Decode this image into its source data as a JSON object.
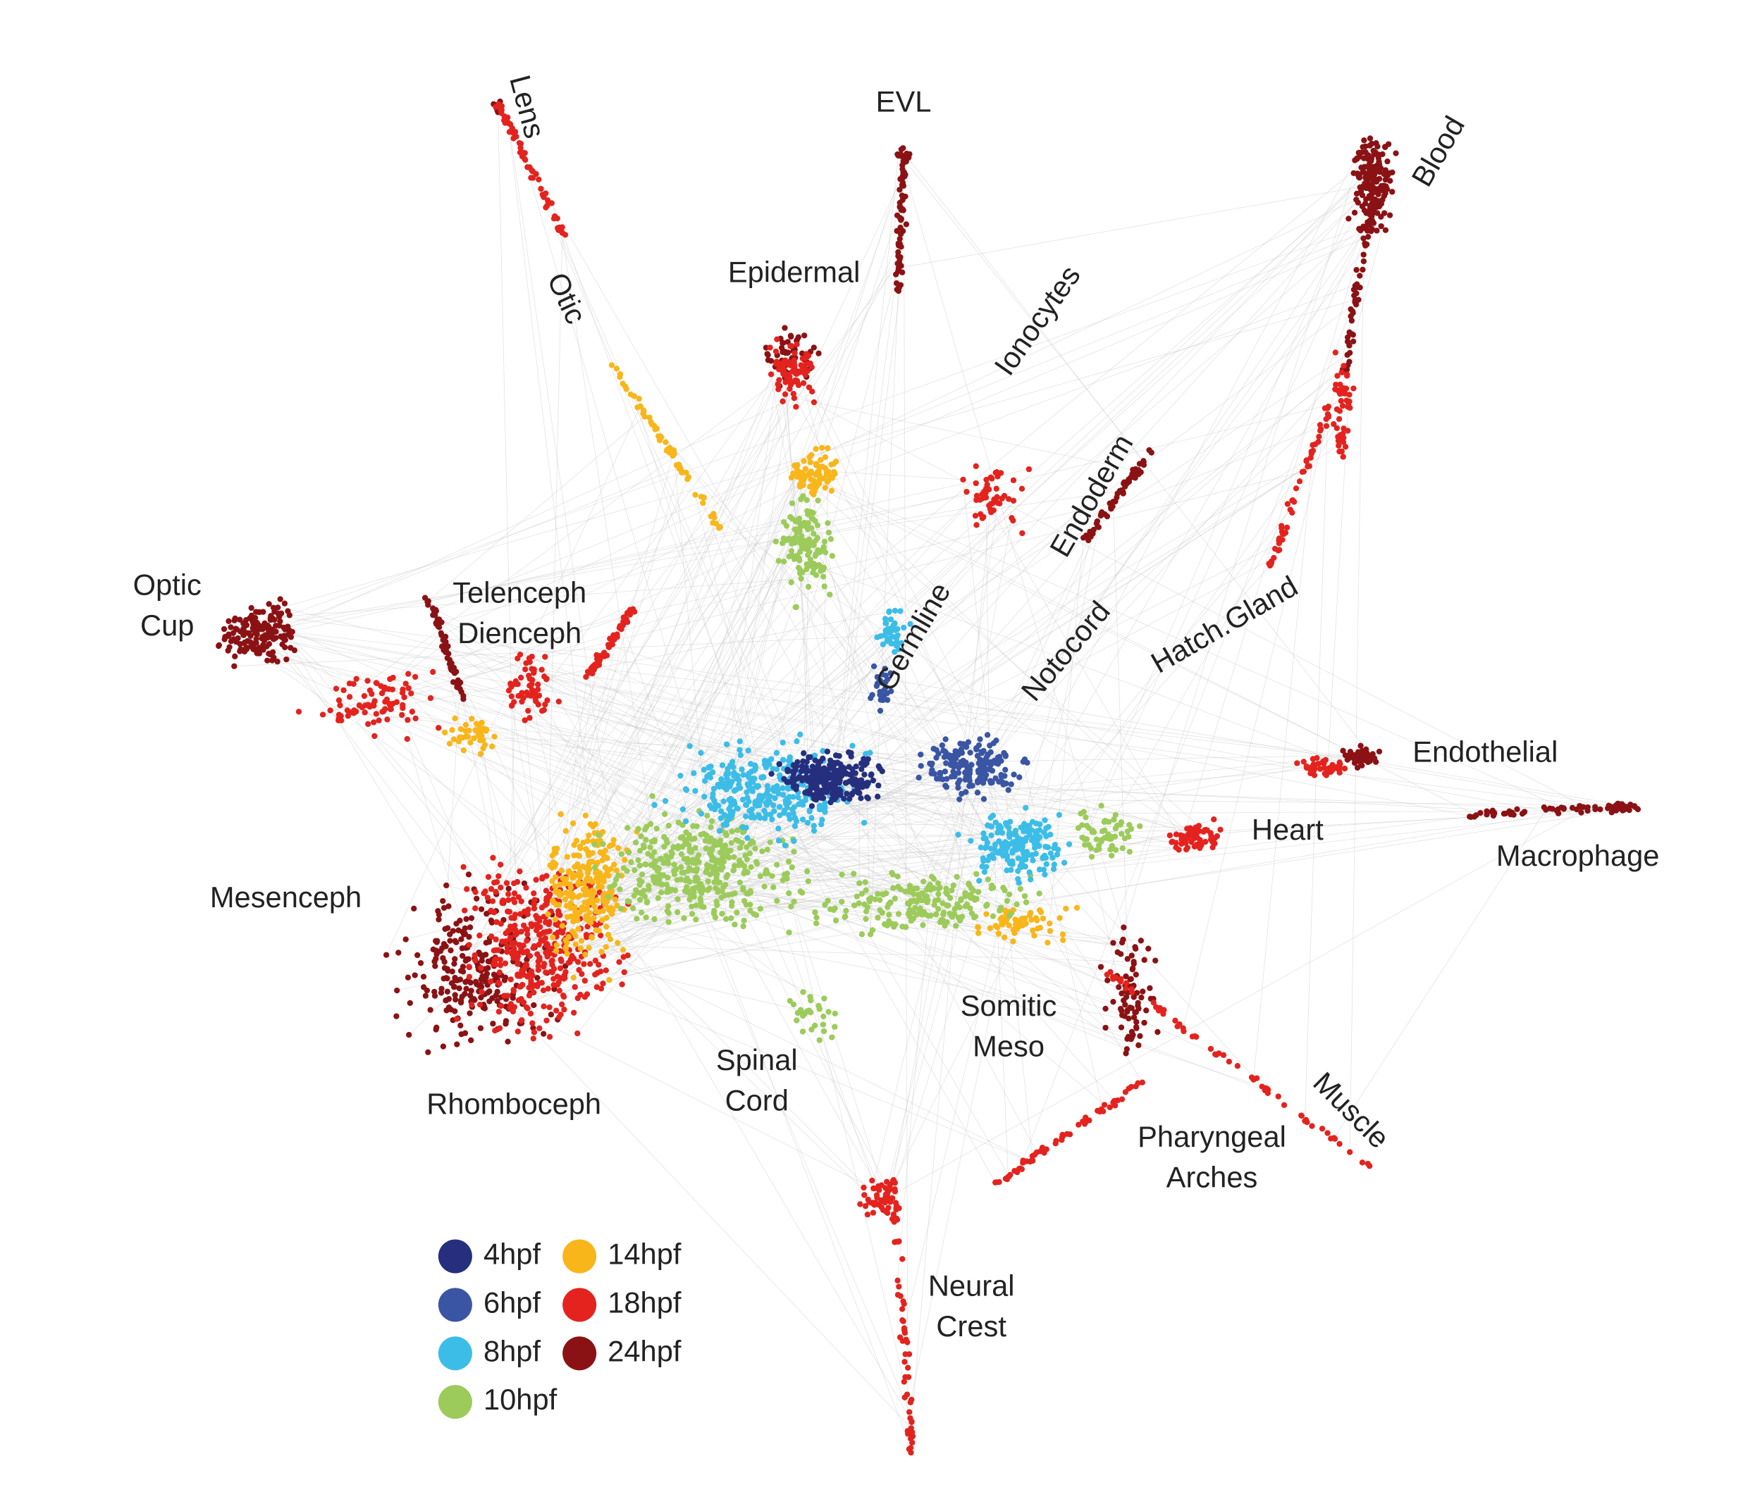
{
  "labels": [
    {
      "lines": [
        "Lens"
      ]
    },
    {
      "lines": [
        "EVL"
      ]
    },
    {
      "lines": [
        "Blood"
      ]
    },
    {
      "lines": [
        "Epidermal"
      ]
    },
    {
      "lines": [
        "Otic"
      ]
    },
    {
      "lines": [
        "Ionocytes"
      ]
    },
    {
      "lines": [
        "Endoderm"
      ]
    },
    {
      "lines": [
        "Optic",
        "Cup"
      ]
    },
    {
      "lines": [
        "Telenceph",
        "Dienceph"
      ]
    },
    {
      "lines": [
        "Germline"
      ]
    },
    {
      "lines": [
        "Notocord"
      ]
    },
    {
      "lines": [
        "Hatch.Gland"
      ]
    },
    {
      "lines": [
        "Endothelial"
      ]
    },
    {
      "lines": [
        "Heart"
      ]
    },
    {
      "lines": [
        "Macrophage"
      ]
    },
    {
      "lines": [
        "Mesenceph"
      ]
    },
    {
      "lines": [
        "Somitic",
        "Meso"
      ]
    },
    {
      "lines": [
        "Spinal",
        "Cord"
      ]
    },
    {
      "lines": [
        "Rhomboceph"
      ]
    },
    {
      "lines": [
        "Muscle"
      ]
    },
    {
      "lines": [
        "Pharyngeal",
        "Arches"
      ]
    },
    {
      "lines": [
        "Neural",
        "Crest"
      ]
    }
  ],
  "legend": [
    {
      "label": "4hpf",
      "color": "#262f7e"
    },
    {
      "label": "6hpf",
      "color": "#3a55a4"
    },
    {
      "label": "8hpf",
      "color": "#3cbde8"
    },
    {
      "label": "10hpf",
      "color": "#9ccb5b"
    },
    {
      "label": "14hpf",
      "color": "#f9b61a"
    },
    {
      "label": "18hpf",
      "color": "#e4231e"
    },
    {
      "label": "24hpf",
      "color": "#8b1214"
    }
  ]
}
